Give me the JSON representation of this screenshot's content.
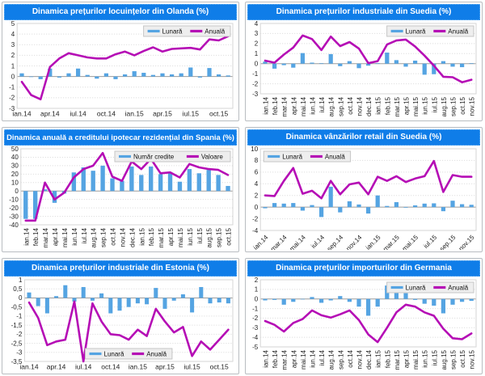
{
  "colors": {
    "title_bar": "#0f7de8",
    "title_text": "#ffffff",
    "bar": "#55a4e2",
    "line": "#b50db5",
    "grid": "#d8d8d8",
    "zero_line": "#9b9b9b",
    "plot_border": "#d6d6d6",
    "tick_text": "#222222",
    "legend_bg": "#eeeeee",
    "legend_border": "#c6c6c6",
    "card_border": "#b9bdc1"
  },
  "chart_data": [
    {
      "type": "bar+line",
      "title": "Dinamica prețurilor locuințelor din Olanda (%)",
      "categories": [
        "ian.14",
        "feb.14",
        "mar.14",
        "apr.14",
        "mai.14",
        "iun.14",
        "iul.14",
        "aug.14",
        "sep.14",
        "oct.14",
        "nov.14",
        "dec.14",
        "ian.15",
        "feb.15",
        "mar.15",
        "apr.15",
        "mai.15",
        "iun.15",
        "iul.15",
        "aug.15",
        "sep.15",
        "oct.15",
        "nov.15"
      ],
      "series": [
        {
          "name": "Lunară",
          "style": "bar",
          "values": [
            0.3,
            -0.05,
            -0.25,
            0.75,
            -0.1,
            0.3,
            0.75,
            0.15,
            -0.2,
            0.3,
            -0.25,
            0.2,
            0.5,
            0.35,
            0.15,
            0.3,
            0.2,
            0.3,
            0.85,
            -0.1,
            0.8,
            0.2,
            0.1
          ]
        },
        {
          "name": "Anuală",
          "style": "line",
          "values": [
            -0.5,
            -1.75,
            -2.15,
            0.9,
            1.7,
            2.2,
            2.0,
            1.8,
            1.7,
            1.7,
            2.1,
            2.35,
            2.0,
            2.4,
            2.75,
            2.35,
            2.6,
            2.65,
            2.7,
            2.55,
            3.5,
            3.4,
            3.8
          ]
        }
      ],
      "ylim": [
        -3,
        5
      ],
      "ytick_step": 1,
      "decimal_comma": false,
      "xtick_every": 3,
      "xtick_rotation": 0,
      "legend_position": "top-right"
    },
    {
      "type": "bar+line",
      "title": "Dinamica prețurilor industriale din Suedia (%)",
      "categories": [
        "ian.14",
        "feb.14",
        "mar.14",
        "apr.14",
        "mai.14",
        "iun.14",
        "iul.14",
        "aug.14",
        "sep.14",
        "oct.14",
        "nov.14",
        "dec.14",
        "ian.15",
        "feb.15",
        "mar.15",
        "apr.15",
        "mai.15",
        "iun.15",
        "iul.15",
        "aug.15",
        "sep.15",
        "oct.15",
        "nov.15"
      ],
      "series": [
        {
          "name": "Lunară",
          "style": "bar",
          "values": [
            0.2,
            -0.5,
            -0.15,
            -0.4,
            1.05,
            0.1,
            0.05,
            0.95,
            -0.25,
            0.25,
            -0.45,
            -0.2,
            0.05,
            1.1,
            0.35,
            -0.3,
            0.3,
            -1.1,
            -1.05,
            0.25,
            -0.3,
            -0.35,
            0.05
          ]
        },
        {
          "name": "Anuală",
          "style": "line",
          "values": [
            0.3,
            0.1,
            0.9,
            1.6,
            2.8,
            2.45,
            1.35,
            2.7,
            1.75,
            2.15,
            1.5,
            0.05,
            0.25,
            1.9,
            2.3,
            2.4,
            1.7,
            0.8,
            -0.2,
            -1.3,
            -1.35,
            -1.85,
            -1.6
          ]
        }
      ],
      "ylim": [
        -3,
        4
      ],
      "ytick_step": 1,
      "decimal_comma": false,
      "xtick_every": 1,
      "xtick_rotation": 90,
      "legend_position": "top-right"
    },
    {
      "type": "bar+line",
      "title": "Dinamica anuală a creditului ipotecar rezidențial din Spania (%)",
      "categories": [
        "ian.14",
        "feb.14",
        "mar.14",
        "apr.14",
        "mai.14",
        "iun.14",
        "iul.14",
        "aug.14",
        "sep.14",
        "oct.14",
        "nov.14",
        "dec.14",
        "ian.15",
        "feb.15",
        "mar.15",
        "apr.15",
        "mai.15",
        "iun.15",
        "iul.15",
        "aug.15",
        "sep.15",
        "oct.15"
      ],
      "series": [
        {
          "name": "Număr credite",
          "style": "bar",
          "values": [
            -33,
            -33,
            2,
            -14,
            -3,
            22,
            28,
            24,
            30,
            15,
            12,
            29,
            19,
            29,
            20,
            21,
            11,
            26,
            21,
            25,
            19,
            6
          ]
        },
        {
          "name": "Valoare",
          "style": "line",
          "values": [
            -35,
            -35,
            10,
            -10,
            -2,
            16,
            26,
            30,
            45,
            17,
            12,
            35,
            26,
            38,
            21,
            22,
            16,
            32,
            28,
            26,
            25,
            19
          ]
        }
      ],
      "ylim": [
        -40,
        50
      ],
      "ytick_step": 10,
      "decimal_comma": false,
      "xtick_every": 1,
      "xtick_rotation": 90,
      "legend_position": "top-right"
    },
    {
      "type": "bar+line",
      "title": "Dinamica vânzărilor retail din Suedia (%)",
      "categories": [
        "ian.14",
        "feb.14",
        "mar.14",
        "apr.14",
        "mai.14",
        "iun.14",
        "iul.14",
        "aug.14",
        "sep.14",
        "oct.14",
        "nov.14",
        "dec.14",
        "ian.15",
        "feb.15",
        "mar.15",
        "apr.15",
        "mai.15",
        "iun.15",
        "iul.15",
        "aug.15",
        "sep.15",
        "oct.15",
        "nov.15"
      ],
      "series": [
        {
          "name": "Lunară",
          "style": "bar",
          "values": [
            -0.2,
            0.7,
            0.6,
            0.7,
            -0.6,
            0.35,
            -1.7,
            3.5,
            -0.9,
            1.0,
            0.45,
            -1.1,
            2.0,
            0.2,
            0.85,
            -0.1,
            0.3,
            0.6,
            0.65,
            -0.7,
            1.1,
            0.5,
            0.4
          ]
        },
        {
          "name": "Anuală",
          "style": "line",
          "values": [
            2.0,
            1.9,
            4.5,
            6.7,
            2.3,
            2.8,
            1.5,
            4.5,
            2.2,
            3.9,
            4.2,
            2.2,
            5.2,
            4.5,
            5.3,
            4.3,
            4.9,
            5.3,
            7.9,
            2.6,
            5.5,
            5.2,
            5.2
          ]
        }
      ],
      "ylim": [
        -4,
        10
      ],
      "ytick_step": 2,
      "decimal_comma": false,
      "xtick_every": 2,
      "xtick_rotation": 45,
      "legend_position": "top-left"
    },
    {
      "type": "bar+line",
      "title": "Dinamica prețurilor industriale din Estonia (%)",
      "categories": [
        "ian.14",
        "feb.14",
        "mar.14",
        "apr.14",
        "mai.14",
        "iun.14",
        "iul.14",
        "aug.14",
        "sep.14",
        "oct.14",
        "nov.14",
        "dec.14",
        "ian.15",
        "feb.15",
        "mar.15",
        "apr.15",
        "mai.15",
        "iun.15",
        "iul.15",
        "aug.15",
        "sep.15",
        "oct.15",
        "nov.15"
      ],
      "series": [
        {
          "name": "Lunară",
          "style": "bar",
          "values": [
            0.3,
            -0.45,
            -0.85,
            0.1,
            0.7,
            -0.2,
            0.6,
            -0.15,
            0.25,
            -0.85,
            -0.7,
            -0.5,
            -0.3,
            -0.35,
            0.55,
            -0.6,
            -0.15,
            0.2,
            -0.8,
            0.6,
            -0.3,
            -0.25,
            -0.3
          ]
        },
        {
          "name": "Anuală",
          "style": "line",
          "values": [
            -0.25,
            -1.1,
            -2.6,
            -2.4,
            -2.3,
            -0.2,
            -3.5,
            -0.3,
            -1.3,
            -2.0,
            -2.05,
            -2.3,
            -1.75,
            -2.1,
            -0.6,
            -1.3,
            -1.9,
            -1.6,
            -3.2,
            -2.4,
            -2.85,
            -2.3,
            -1.75
          ]
        }
      ],
      "ylim": [
        -3.5,
        1
      ],
      "ytick_step": 0.5,
      "decimal_comma": true,
      "xtick_every": 3,
      "xtick_rotation": 0,
      "legend_position": "bottom-center"
    },
    {
      "type": "bar+line",
      "title": "Dinamica prețurilor importurilor din Germania",
      "categories": [
        "ian.14",
        "feb.14",
        "mar.14",
        "apr.14",
        "mai.14",
        "iun.14",
        "iul.14",
        "aug.14",
        "sep.14",
        "oct.14",
        "nov.14",
        "dec.14",
        "ian.15",
        "feb.15",
        "mar.15",
        "apr.15",
        "mai.15",
        "iun.15",
        "iul.15",
        "aug.15",
        "sep.15",
        "oct.15",
        "nov.15"
      ],
      "series": [
        {
          "name": "Lunară",
          "style": "bar",
          "values": [
            -0.15,
            -0.1,
            -0.6,
            -0.3,
            -0.05,
            0.2,
            -0.4,
            -0.15,
            0.3,
            -0.3,
            -0.8,
            -1.75,
            -0.8,
            1.4,
            1.0,
            0.6,
            -0.1,
            -0.5,
            -0.7,
            -1.5,
            -0.6,
            -0.3,
            -0.2
          ]
        },
        {
          "name": "Anuală",
          "style": "line",
          "values": [
            -2.3,
            -2.7,
            -3.4,
            -2.5,
            -2.1,
            -1.2,
            -1.7,
            -1.95,
            -1.6,
            -1.2,
            -2.2,
            -3.7,
            -4.5,
            -3.0,
            -1.4,
            -0.6,
            -0.8,
            -1.4,
            -1.75,
            -3.1,
            -4.1,
            -4.2,
            -3.6
          ]
        }
      ],
      "ylim": [
        -5,
        2
      ],
      "ytick_step": 1,
      "decimal_comma": false,
      "xtick_every": 1,
      "xtick_rotation": 90,
      "legend_position": "top-right"
    }
  ]
}
